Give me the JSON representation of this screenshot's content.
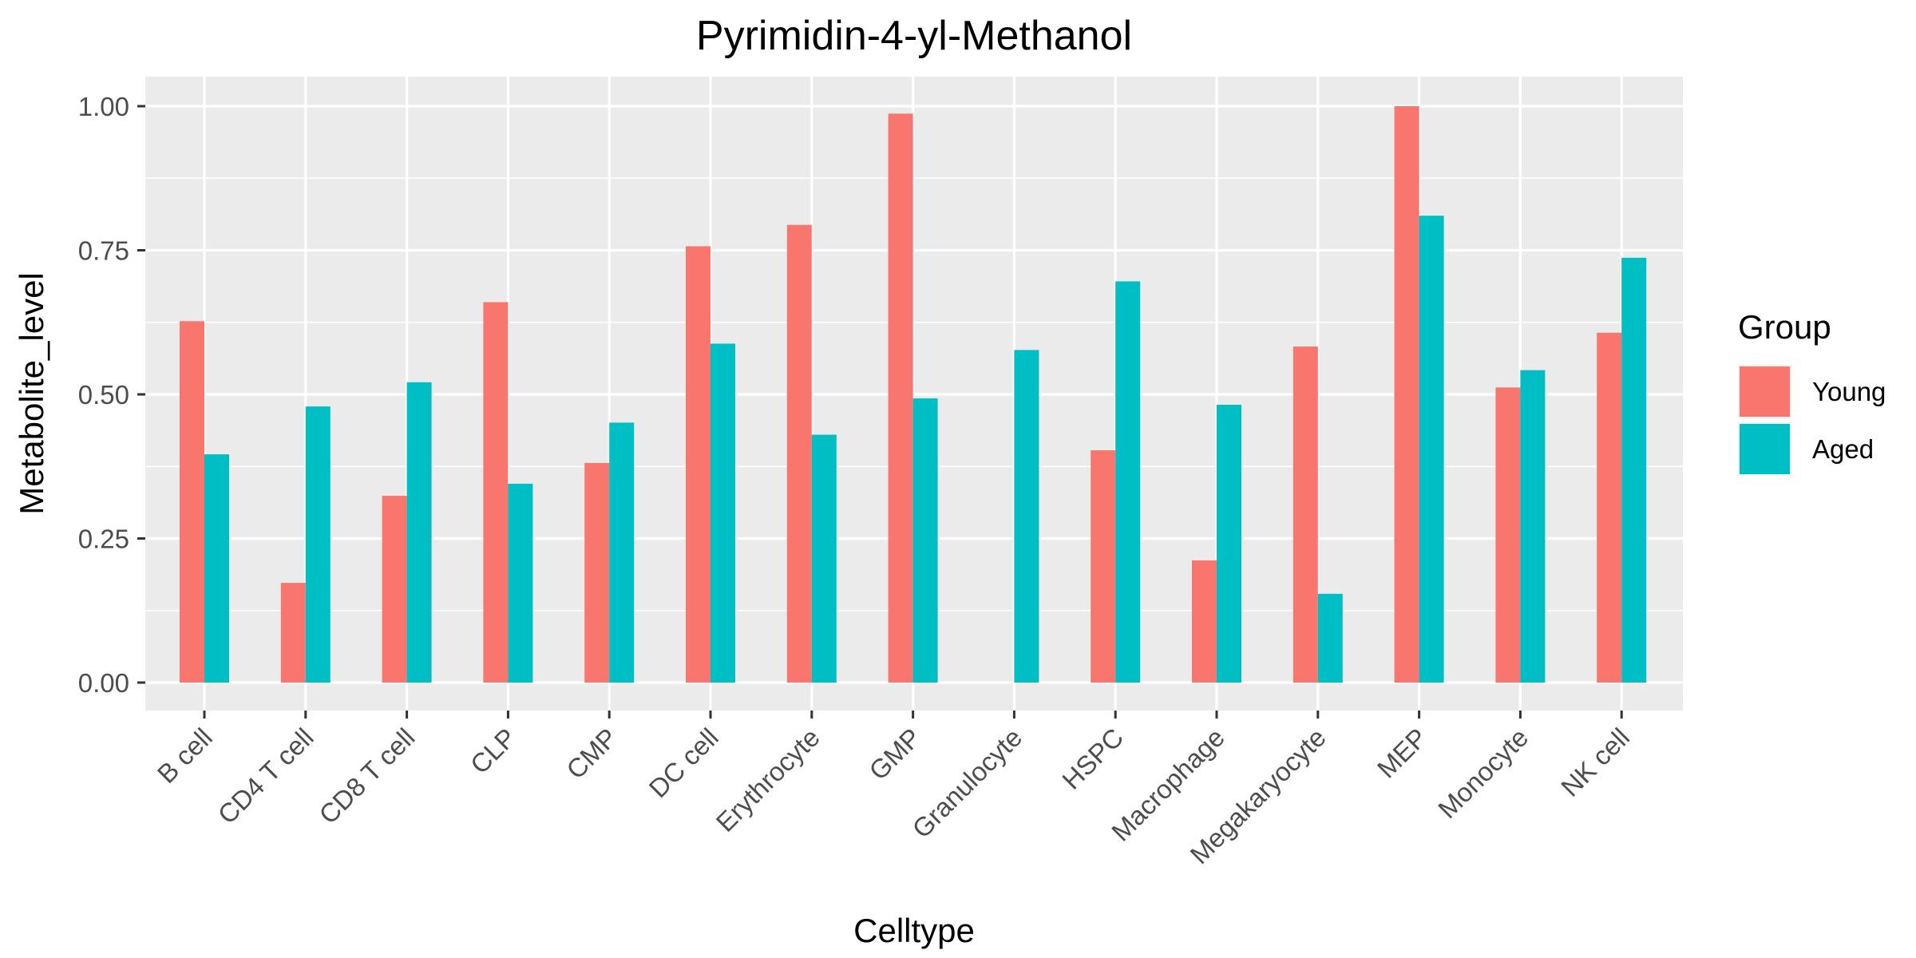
{
  "chart_data": {
    "type": "bar",
    "title": "Pyrimidin-4-yl-Methanol",
    "xlabel": "Celltype",
    "ylabel": "Metabolite_level",
    "ylim": [
      0,
      1.0
    ],
    "yticks": [
      "0.00",
      "0.25",
      "0.50",
      "0.75",
      "1.00"
    ],
    "ytick_values": [
      0,
      0.25,
      0.5,
      0.75,
      1.0
    ],
    "grid": true,
    "legend_title": "Group",
    "legend_position": "right",
    "categories": [
      "B cell",
      "CD4 T cell",
      "CD8 T cell",
      "CLP",
      "CMP",
      "DC cell",
      "Erythrocyte",
      "GMP",
      "Granulocyte",
      "HSPC",
      "Macrophage",
      "Megakaryocyte",
      "MEP",
      "Monocyte",
      "NK cell"
    ],
    "series": [
      {
        "name": "Young",
        "color": "#F8766D",
        "values": [
          0.627,
          0.173,
          0.324,
          0.66,
          0.381,
          0.757,
          0.794,
          0.987,
          0.0,
          0.403,
          0.212,
          0.583,
          1.0,
          0.512,
          0.607
        ]
      },
      {
        "name": "Aged",
        "color": "#00BFC4",
        "values": [
          0.396,
          0.479,
          0.521,
          0.345,
          0.451,
          0.588,
          0.43,
          0.493,
          0.577,
          0.696,
          0.482,
          0.154,
          0.81,
          0.542,
          0.737
        ]
      }
    ]
  },
  "colors": {
    "panel_background": "#EBEBEB",
    "grid_line": "#FFFFFF"
  }
}
